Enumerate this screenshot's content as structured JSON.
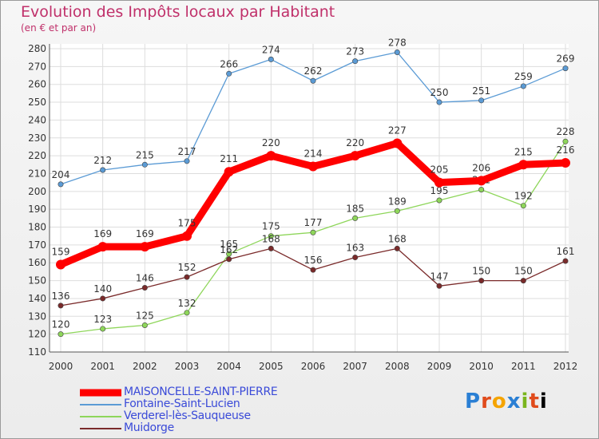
{
  "title": "Evolution des Impôts locaux par Habitant",
  "subtitle": "(en € et par an)",
  "logo": "Proxiti",
  "chart_data": {
    "type": "line",
    "x": [
      "2000",
      "2001",
      "2002",
      "2003",
      "2004",
      "2005",
      "2006",
      "2007",
      "2008",
      "2009",
      "2010",
      "2011",
      "2012"
    ],
    "ylim": [
      110,
      280
    ],
    "yticks": [
      110,
      120,
      130,
      140,
      150,
      160,
      170,
      180,
      190,
      200,
      210,
      220,
      230,
      240,
      250,
      260,
      270,
      280
    ],
    "grid": true,
    "legend_position": "bottom-left",
    "series": [
      {
        "name": "MAISONCELLE-SAINT-PIERRE",
        "color": "#ff0000",
        "values": [
          159,
          169,
          169,
          175,
          211,
          220,
          214,
          220,
          227,
          205,
          206,
          215,
          216
        ]
      },
      {
        "name": "Fontaine-Saint-Lucien",
        "color": "#5b9bd5",
        "values": [
          204,
          212,
          215,
          217,
          266,
          274,
          262,
          273,
          278,
          250,
          251,
          259,
          269
        ]
      },
      {
        "name": "Verderel-lès-Sauqueuse",
        "color": "#8ed65a",
        "values": [
          120,
          123,
          125,
          132,
          165,
          175,
          177,
          185,
          189,
          195,
          201,
          192,
          228
        ]
      },
      {
        "name": "Muidorge",
        "color": "#7a2a2a",
        "values": [
          136,
          140,
          146,
          152,
          162,
          168,
          156,
          163,
          168,
          147,
          150,
          150,
          161
        ]
      }
    ]
  }
}
